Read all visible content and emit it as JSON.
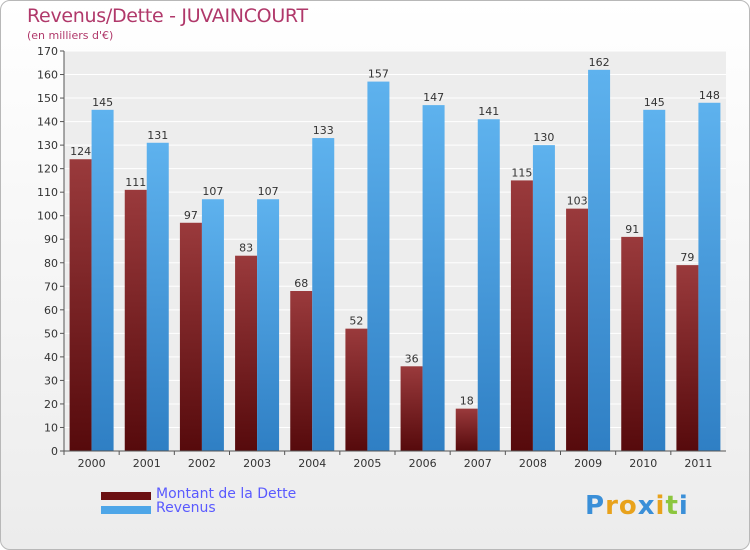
{
  "chart_data": {
    "type": "bar",
    "title": "Revenus/Dette - JUVAINCOURT",
    "subtitle": "(en milliers d'€)",
    "xlabel": "",
    "ylabel": "",
    "categories": [
      "2000",
      "2001",
      "2002",
      "2003",
      "2004",
      "2005",
      "2006",
      "2007",
      "2008",
      "2009",
      "2010",
      "2011"
    ],
    "series": [
      {
        "name": "Montant de la Dette",
        "color": "#7a1a1c",
        "values": [
          124,
          111,
          97,
          83,
          68,
          52,
          36,
          18,
          115,
          103,
          91,
          79
        ]
      },
      {
        "name": "Revenus",
        "color": "#4ea6e8",
        "values": [
          145,
          131,
          107,
          107,
          133,
          157,
          147,
          141,
          130,
          162,
          145,
          148
        ]
      }
    ],
    "ylim": [
      0,
      170
    ],
    "ytick_step": 10,
    "grid": true,
    "legend_position": "bottom-left"
  },
  "legend": {
    "items": [
      {
        "label": "Montant de la Dette",
        "color": "#6b1012"
      },
      {
        "label": "Revenus",
        "color": "#4ea6e8"
      }
    ]
  },
  "logo": {
    "letters": [
      {
        "char": "P",
        "color": "#3a8fd8"
      },
      {
        "char": "r",
        "color": "#e8a21c"
      },
      {
        "char": "o",
        "color": "#e8a21c"
      },
      {
        "char": "x",
        "color": "#3a8fd8"
      },
      {
        "char": "i",
        "color": "#e8a21c"
      },
      {
        "char": "t",
        "color": "#8cc63e"
      },
      {
        "char": "i",
        "color": "#3a8fd8"
      }
    ]
  }
}
